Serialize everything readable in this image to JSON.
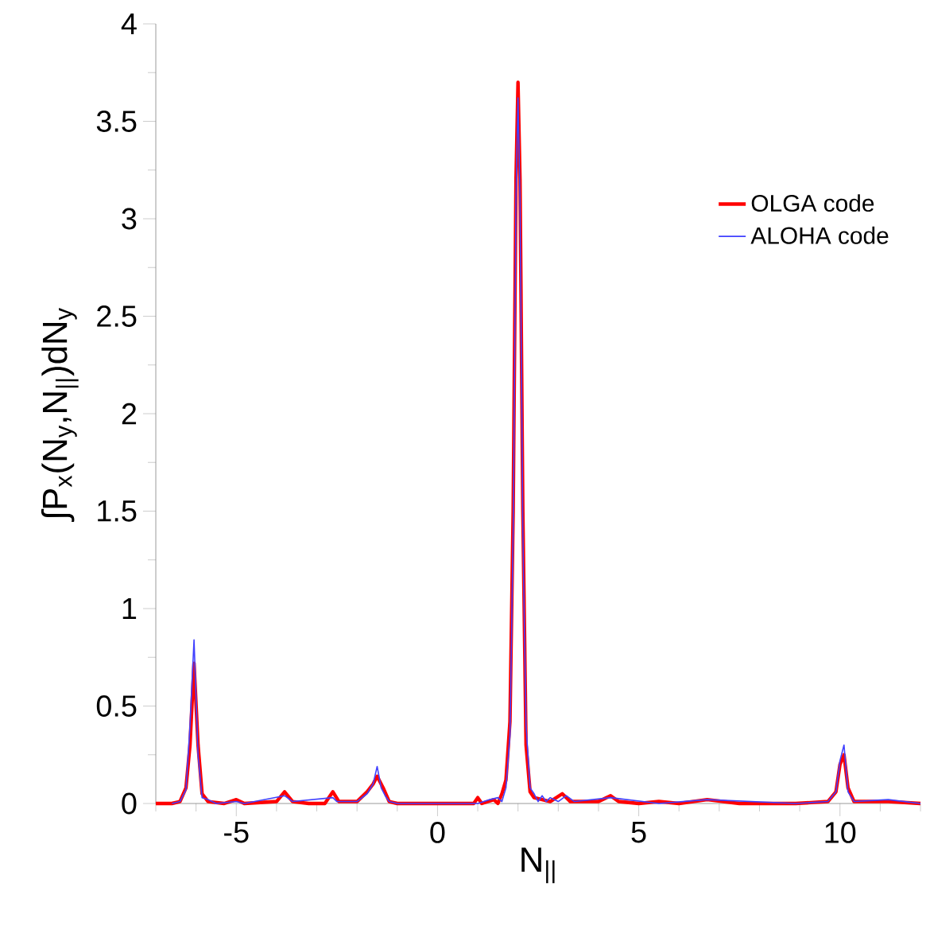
{
  "chart_data": {
    "type": "line",
    "xlabel": "N$_{||}$",
    "ylabel": "∫P$_{x}$(N$_{y}$,N$_{||}$)dN$_{y}$",
    "xlim": [
      -7,
      12
    ],
    "ylim": [
      0,
      4
    ],
    "xticks": [
      {
        "value": -7,
        "label": null
      },
      {
        "value": -6,
        "label": null
      },
      -5,
      {
        "value": -4,
        "label": null
      },
      {
        "value": -3,
        "label": null
      },
      {
        "value": -2,
        "label": null
      },
      {
        "value": -1,
        "label": null
      },
      0,
      {
        "value": 1,
        "label": null
      },
      {
        "value": 2,
        "label": null
      },
      {
        "value": 3,
        "label": null
      },
      {
        "value": 4,
        "label": null
      },
      5,
      {
        "value": 6,
        "label": null
      },
      {
        "value": 7,
        "label": null
      },
      {
        "value": 8,
        "label": null
      },
      {
        "value": 9,
        "label": null
      },
      10,
      {
        "value": 11,
        "label": null
      },
      {
        "value": 12,
        "label": null
      }
    ],
    "yticks": [
      0,
      {
        "value": 0.25,
        "label": null
      },
      0.5,
      {
        "value": 0.75,
        "label": null
      },
      1,
      {
        "value": 1.25,
        "label": null
      },
      1.5,
      {
        "value": 1.75,
        "label": null
      },
      2,
      {
        "value": 2.25,
        "label": null
      },
      2.5,
      {
        "value": 2.75,
        "label": null
      },
      3,
      {
        "value": 3.25,
        "label": null
      },
      3.5,
      {
        "value": 3.75,
        "label": null
      },
      4
    ],
    "grid": false,
    "legend": "top right",
    "marker": "none",
    "series": [
      {
        "name": "OLGA code",
        "color": "#ff0000",
        "x": [
          -7,
          -6.6,
          -6.4,
          -6.25,
          -6.15,
          -6.05,
          -5.95,
          -5.85,
          -5.7,
          -5.3,
          -5.0,
          -4.8,
          -4.0,
          -3.8,
          -3.6,
          -3.2,
          -2.8,
          -2.6,
          -2.45,
          -2.0,
          -1.75,
          -1.6,
          -1.5,
          -1.35,
          -1.2,
          -1.0,
          0,
          0.9,
          1.0,
          1.1,
          1.4,
          1.5,
          1.6,
          1.7,
          1.8,
          1.88,
          1.95,
          2.0,
          2.05,
          2.12,
          2.2,
          2.3,
          2.4,
          2.6,
          2.8,
          3.1,
          3.3,
          3.6,
          4.0,
          4.3,
          4.5,
          5.0,
          5.5,
          6.0,
          6.7,
          7.5,
          8.9,
          9.7,
          9.9,
          10.0,
          10.1,
          10.2,
          10.35,
          11.2,
          12
        ],
        "values": [
          0,
          0,
          0.01,
          0.08,
          0.3,
          0.72,
          0.3,
          0.05,
          0.01,
          0,
          0.02,
          0,
          0.01,
          0.06,
          0.01,
          0,
          0,
          0.06,
          0.01,
          0.01,
          0.06,
          0.1,
          0.14,
          0.08,
          0.01,
          0,
          0,
          0,
          0.03,
          0,
          0.02,
          0,
          0.05,
          0.12,
          0.42,
          1.5,
          3.2,
          3.7,
          3.2,
          1.5,
          0.3,
          0.06,
          0.03,
          0.02,
          0.01,
          0.05,
          0.01,
          0.01,
          0.01,
          0.04,
          0.01,
          0,
          0.01,
          0,
          0.02,
          0,
          0,
          0.01,
          0.06,
          0.2,
          0.25,
          0.08,
          0.01,
          0.01,
          0
        ]
      },
      {
        "name": "ALOHA code",
        "color": "#4040ff",
        "x": [
          -6.6,
          -6.4,
          -6.25,
          -6.15,
          -6.05,
          -5.95,
          -5.85,
          -5.7,
          -5.5,
          -5.0,
          -4.8,
          -3.8,
          -3.6,
          -2.6,
          -2.5,
          -2.0,
          -1.75,
          -1.6,
          -1.5,
          -1.4,
          -1.3,
          -1.2,
          -1.0,
          1.0,
          1.3,
          1.5,
          1.6,
          1.7,
          1.8,
          1.88,
          1.95,
          2.0,
          2.05,
          2.12,
          2.2,
          2.3,
          2.4,
          2.5,
          2.6,
          2.7,
          2.8,
          3.0,
          3.2,
          3.4,
          4.3,
          5.5,
          6.7,
          8.9,
          9.7,
          9.9,
          10.0,
          10.1,
          10.2,
          10.35,
          11.2,
          12
        ],
        "values": [
          0,
          0.01,
          0.07,
          0.4,
          0.84,
          0.25,
          0.03,
          0.02,
          0,
          0.01,
          0,
          0.04,
          0.01,
          0.03,
          0.01,
          0.01,
          0.05,
          0.1,
          0.19,
          0.08,
          0.04,
          0.01,
          0,
          0,
          0.02,
          0.03,
          0.01,
          0.08,
          0.35,
          1.4,
          3.1,
          3.62,
          3.1,
          1.4,
          0.4,
          0.08,
          0.05,
          0.01,
          0.04,
          0.01,
          0.03,
          0.01,
          0.04,
          0.01,
          0.03,
          0,
          0.02,
          0,
          0.01,
          0.06,
          0.22,
          0.3,
          0.06,
          0.01,
          0.02,
          0
        ]
      }
    ]
  }
}
